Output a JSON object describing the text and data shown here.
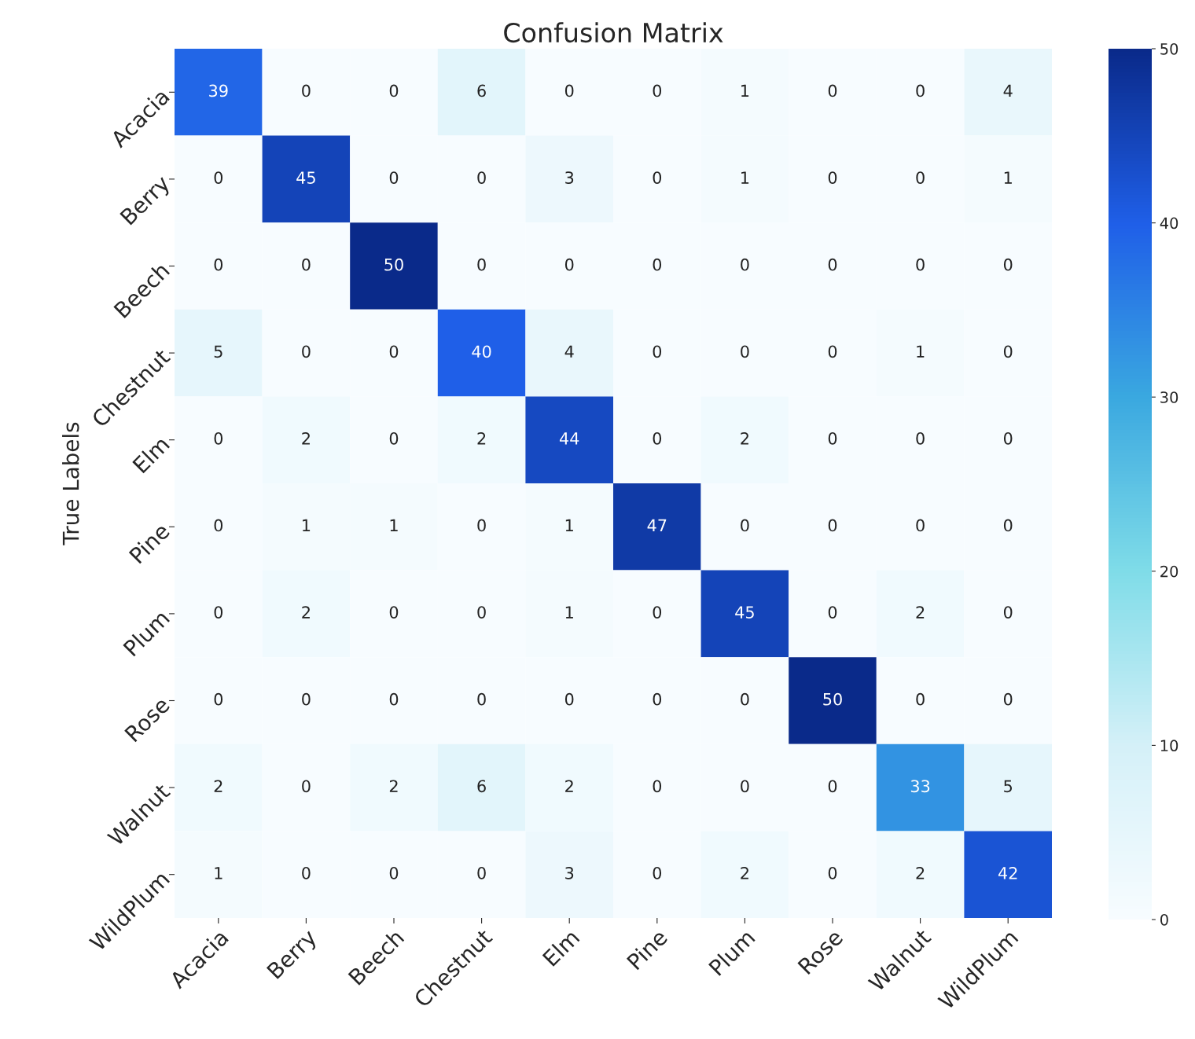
{
  "chart_data": {
    "type": "heatmap",
    "title": "Confusion Matrix",
    "ylabel": "True Labels",
    "categories": [
      "Acacia",
      "Berry",
      "Beech",
      "Chestnut",
      "Elm",
      "Pine",
      "Plum",
      "Rose",
      "Walnut",
      "WildPlum"
    ],
    "y_categories": [
      "Acacia",
      "Berry",
      "Beech",
      "Chestnut",
      "Elm",
      "Pine",
      "Plum",
      "Rose",
      "Walnut",
      "WildPlum"
    ],
    "cells": [
      [
        39,
        0,
        0,
        6,
        0,
        0,
        1,
        0,
        0,
        4
      ],
      [
        0,
        45,
        0,
        0,
        3,
        0,
        1,
        0,
        0,
        1
      ],
      [
        0,
        0,
        50,
        0,
        0,
        0,
        0,
        0,
        0,
        0
      ],
      [
        5,
        0,
        0,
        40,
        4,
        0,
        0,
        0,
        1,
        0
      ],
      [
        0,
        2,
        0,
        2,
        44,
        0,
        2,
        0,
        0,
        0
      ],
      [
        0,
        1,
        1,
        0,
        1,
        47,
        0,
        0,
        0,
        0
      ],
      [
        0,
        2,
        0,
        0,
        1,
        0,
        45,
        0,
        2,
        0
      ],
      [
        0,
        0,
        0,
        0,
        0,
        0,
        0,
        50,
        0,
        0
      ],
      [
        2,
        0,
        2,
        6,
        2,
        0,
        0,
        0,
        33,
        5
      ],
      [
        1,
        0,
        0,
        0,
        3,
        0,
        2,
        0,
        2,
        42
      ]
    ],
    "clim": [
      0,
      50
    ],
    "cticks": [
      0,
      10,
      20,
      30,
      40,
      50
    ],
    "data_labels": true
  }
}
